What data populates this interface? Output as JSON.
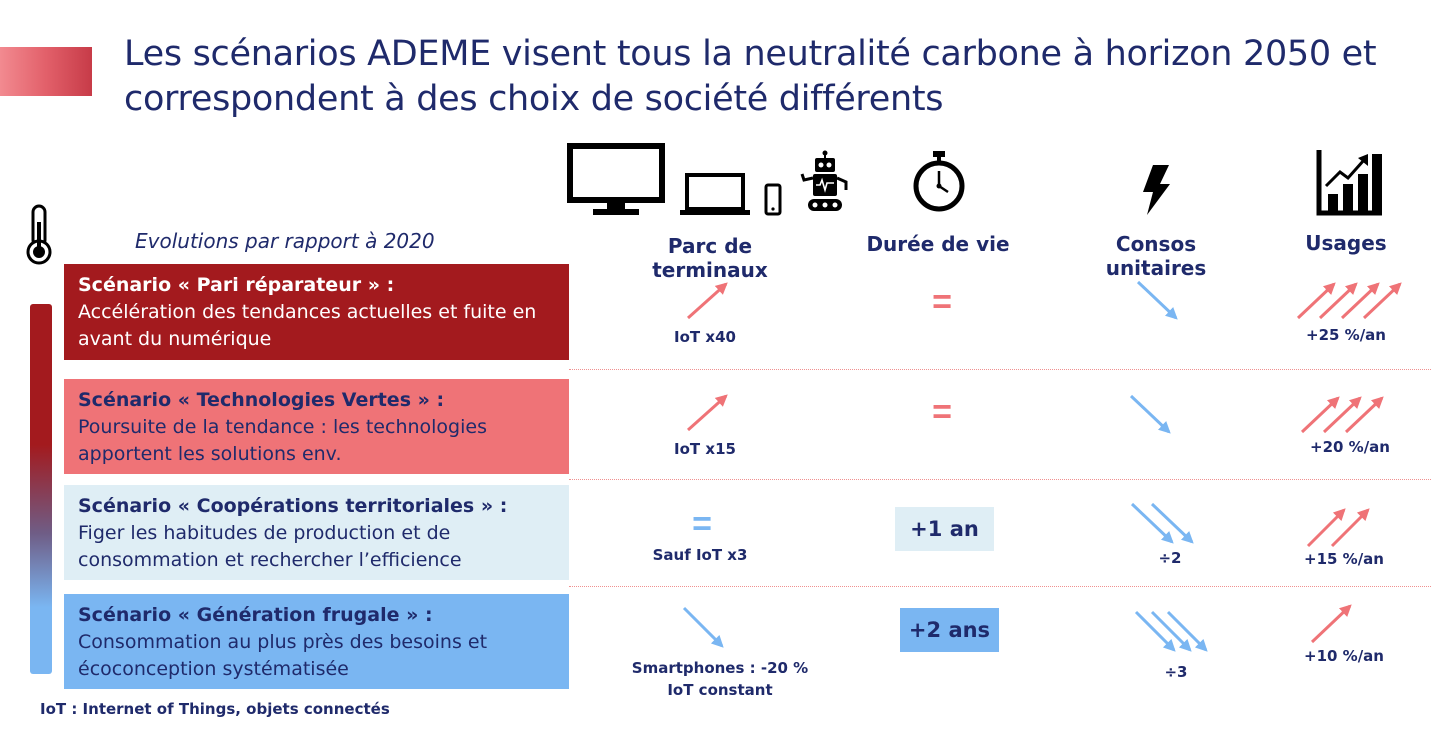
{
  "title": {
    "line1": "Les scénarios ADEME visent tous la neutralité carbone à horizon 2050 et",
    "line2": "correspondent à des choix de société différents"
  },
  "evolutions_label": "Evolutions par rapport à 2020",
  "columns": {
    "terminaux": "Parc de terminaux",
    "duree": "Durée de vie",
    "consos": "Consos unitaires",
    "usages": "Usages"
  },
  "icons": {
    "thermometer": "thermometer-icon",
    "monitor": "monitor-icon",
    "laptop": "laptop-icon",
    "phone": "smartphone-icon",
    "robot": "robot-icon",
    "stopwatch": "stopwatch-icon",
    "lightning": "lightning-icon",
    "chart": "bar-chart-rising-icon"
  },
  "colors": {
    "navy": "#1f2a6b",
    "dark_red": "#a31a1e",
    "salmon": "#ef7377",
    "pale_blue": "#dfeef5",
    "light_blue": "#7ab6f2"
  },
  "scenarios": [
    {
      "name": "Scénario « Pari réparateur » :",
      "desc1": "Accélération des tendances actuelles et fuite en",
      "desc2": "avant du numérique",
      "terminaux": "IoT x40",
      "terminaux_arrow": "up",
      "duree": "=",
      "consos_arrows": 1,
      "consos_label": "",
      "usages_arrows": 4,
      "usages": "+25 %/an"
    },
    {
      "name": "Scénario « Technologies Vertes » :",
      "desc1": "Poursuite de la tendance : les technologies",
      "desc2": "apportent les solutions env.",
      "terminaux": "IoT x15",
      "terminaux_arrow": "up",
      "duree": "=",
      "consos_arrows": 1,
      "consos_label": "",
      "usages_arrows": 3,
      "usages": "+20 %/an"
    },
    {
      "name": "Scénario « Coopérations territoriales » :",
      "desc1": "Figer les habitudes de production et de",
      "desc2": "consommation et rechercher l’efficience",
      "terminaux": "Sauf IoT x3",
      "terminaux_arrow": "equal",
      "duree": "+1 an",
      "consos_arrows": 2,
      "consos_label": "÷2",
      "usages_arrows": 2,
      "usages": "+15 %/an"
    },
    {
      "name": "Scénario « Génération frugale » :",
      "desc1": "Consommation au plus près des besoins et",
      "desc2": "écoconception systématisée",
      "terminaux": "Smartphones : -20 %",
      "terminaux2": "IoT constant",
      "terminaux_arrow": "down",
      "duree": "+2 ans",
      "consos_arrows": 3,
      "consos_label": "÷3",
      "usages_arrows": 1,
      "usages": "+10 %/an"
    }
  ],
  "footnote": "IoT : Internet of Things, objets connectés"
}
